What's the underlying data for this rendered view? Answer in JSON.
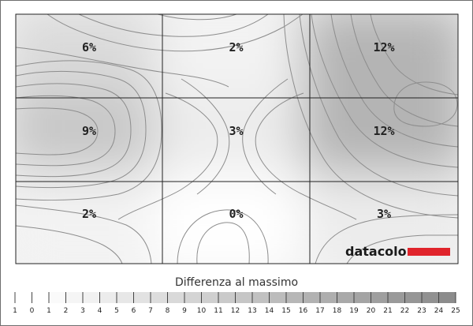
{
  "chart_data": {
    "type": "heatmap",
    "title": "",
    "rows": 3,
    "cols": 3,
    "cells": [
      [
        "6%",
        "2%",
        "12%"
      ],
      [
        "9%",
        "3%",
        "12%"
      ],
      [
        "2%",
        "0%",
        "3%"
      ]
    ],
    "values": [
      [
        6,
        2,
        12
      ],
      [
        9,
        3,
        12
      ],
      [
        2,
        0,
        3
      ]
    ],
    "legend": {
      "title": "Differenza al massimo",
      "ticks": [
        "1",
        "0",
        "1",
        "2",
        "3",
        "4",
        "5",
        "6",
        "7",
        "8",
        "9",
        "10",
        "11",
        "12",
        "13",
        "14",
        "15",
        "16",
        "17",
        "18",
        "19",
        "20",
        "21",
        "22",
        "23",
        "24",
        "25"
      ],
      "min": 0,
      "max": 25
    },
    "logo": "datacolor",
    "colors": {
      "low": "#ffffff",
      "high": "#a8a8a8",
      "contour": "#8a8a8a",
      "grid": "#222222",
      "logo_bar": "#e0242b"
    }
  }
}
